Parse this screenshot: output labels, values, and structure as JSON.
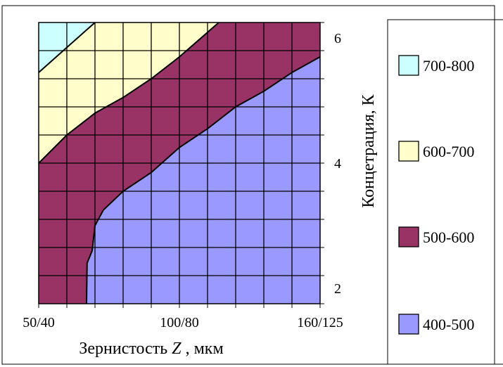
{
  "chart_data": {
    "type": "area",
    "title": "",
    "xlabel": "Зернистость",
    "xlabel_var": "Z",
    "xlabel_unit": ", мкм",
    "ylabel": "Концетрация, К",
    "x_tick_labels": [
      {
        "x": 1,
        "label": "50/40"
      },
      {
        "x": 6,
        "label": "100/80"
      },
      {
        "x": 11,
        "label": "160/125"
      }
    ],
    "y_tick_labels": [
      {
        "y": 2,
        "label": "2"
      },
      {
        "y": 4,
        "label": "4"
      },
      {
        "y": 6,
        "label": "6"
      }
    ],
    "xlim": [
      1,
      11
    ],
    "ylim": [
      1.75,
      6.25
    ],
    "grid": true,
    "legend_position": "right",
    "series": [
      {
        "name": "700-800",
        "color": "#ccffff"
      },
      {
        "name": "600-700",
        "color": "#ffffcc"
      },
      {
        "name": "500-600",
        "color": "#993366"
      },
      {
        "name": "400-500",
        "color": "#9999ff"
      }
    ],
    "boundaries": [
      {
        "between": [
          "700-800",
          "600-700"
        ],
        "points": [
          [
            1,
            5.45
          ],
          [
            2,
            5.85
          ],
          [
            3,
            6.25
          ]
        ]
      },
      {
        "between": [
          "600-700",
          "500-600"
        ],
        "points": [
          [
            1,
            4.0
          ],
          [
            2,
            4.45
          ],
          [
            3,
            4.8
          ],
          [
            4,
            5.05
          ],
          [
            5,
            5.35
          ],
          [
            6,
            5.7
          ],
          [
            7.4,
            6.25
          ]
        ]
      },
      {
        "between": [
          "500-600",
          "400-500"
        ],
        "points": [
          [
            2.7,
            1.75
          ],
          [
            2.72,
            2.4
          ],
          [
            2.9,
            2.6
          ],
          [
            3.0,
            3.0
          ],
          [
            3.3,
            3.25
          ],
          [
            4,
            3.55
          ],
          [
            5,
            3.85
          ],
          [
            6,
            4.25
          ],
          [
            7,
            4.55
          ],
          [
            8,
            4.9
          ],
          [
            9,
            5.15
          ],
          [
            10,
            5.45
          ],
          [
            11,
            5.7
          ]
        ]
      }
    ]
  }
}
